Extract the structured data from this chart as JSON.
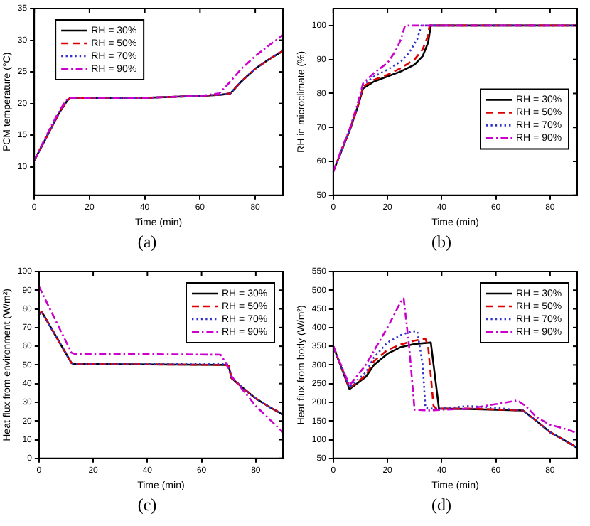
{
  "chart_data": [
    {
      "type": "line",
      "xlabel": "Time (min)",
      "ylabel": "PCM temperature (°C)",
      "annotations": [
        "(a)"
      ],
      "xlim": [
        0,
        90
      ],
      "xticks": [
        0,
        20,
        40,
        60,
        80
      ],
      "ylim": [
        5.5,
        35
      ],
      "yticks": [
        10,
        15,
        20,
        25,
        30,
        35
      ],
      "grid": false,
      "legend": "top left",
      "series": [
        {
          "name": "RH = 30%",
          "color": "#000000",
          "line_style": "solid",
          "x": [
            0,
            3,
            6,
            9,
            12,
            13,
            20,
            40,
            60,
            68,
            71,
            75,
            80,
            85,
            90
          ],
          "values": [
            11,
            13.5,
            16,
            18.5,
            20.5,
            20.9,
            20.9,
            20.9,
            21.2,
            21.4,
            21.6,
            23.5,
            25.5,
            27,
            28.3
          ]
        },
        {
          "name": "RH = 50%",
          "color": "#dd0000",
          "line_style": "dashed",
          "x": [
            0,
            3,
            6,
            9,
            12,
            13,
            20,
            40,
            60,
            68,
            71,
            75,
            80,
            85,
            90
          ],
          "values": [
            11,
            13.5,
            16,
            18.5,
            20.5,
            20.9,
            20.9,
            20.9,
            21.2,
            21.4,
            21.6,
            23.5,
            25.5,
            27,
            28.3
          ]
        },
        {
          "name": "RH = 70%",
          "color": "#3333cc",
          "line_style": "dotted",
          "x": [
            0,
            3,
            6,
            9,
            12,
            13,
            20,
            40,
            60,
            68,
            71,
            75,
            80,
            85,
            90
          ],
          "values": [
            11,
            13.5,
            16,
            18.5,
            20.6,
            20.9,
            20.9,
            20.9,
            21.2,
            21.4,
            21.6,
            23.5,
            25.5,
            27,
            28.4
          ]
        },
        {
          "name": "RH = 90%",
          "color": "#cc00cc",
          "line_style": "dashdot",
          "x": [
            0,
            3,
            6,
            9,
            12,
            13,
            20,
            40,
            60,
            67,
            70,
            75,
            80,
            85,
            90
          ],
          "values": [
            11,
            13.7,
            16.3,
            18.8,
            20.8,
            20.9,
            20.9,
            20.9,
            21.2,
            21.6,
            23,
            25.5,
            27.5,
            29.2,
            30.8
          ]
        }
      ]
    },
    {
      "type": "line",
      "xlabel": "Time (min)",
      "ylabel": "RH in microclimate (%)",
      "annotations": [
        "(b)"
      ],
      "xlim": [
        0,
        90
      ],
      "xticks": [
        0,
        20,
        40,
        60,
        80
      ],
      "ylim": [
        50,
        105
      ],
      "yticks": [
        50,
        60,
        70,
        80,
        90,
        100
      ],
      "grid": false,
      "legend": "right",
      "series": [
        {
          "name": "RH = 30%",
          "color": "#000000",
          "line_style": "solid",
          "x": [
            0,
            3,
            6,
            9,
            11,
            15,
            20,
            25,
            30,
            33,
            35,
            36,
            90
          ],
          "values": [
            57,
            63,
            69,
            76,
            81.5,
            83.5,
            85,
            86.5,
            88.5,
            91,
            95,
            100,
            100
          ]
        },
        {
          "name": "RH = 50%",
          "color": "#dd0000",
          "line_style": "dashed",
          "x": [
            0,
            3,
            6,
            9,
            11,
            15,
            20,
            25,
            30,
            33,
            35,
            35.5,
            90
          ],
          "values": [
            57,
            63,
            69,
            76,
            82,
            84,
            85.5,
            87.5,
            90,
            93,
            97,
            100,
            100
          ]
        },
        {
          "name": "RH = 70%",
          "color": "#3333cc",
          "line_style": "dotted",
          "x": [
            0,
            3,
            6,
            9,
            11,
            15,
            20,
            25,
            28,
            31,
            32.5,
            90
          ],
          "values": [
            57,
            63,
            69,
            76.5,
            82.5,
            85,
            87,
            89.5,
            92,
            96,
            100,
            100
          ]
        },
        {
          "name": "RH = 90%",
          "color": "#cc00cc",
          "line_style": "dashdot",
          "x": [
            0,
            3,
            6,
            9,
            11,
            15,
            20,
            23,
            25,
            26.5,
            90
          ],
          "values": [
            57,
            63.5,
            69.5,
            77,
            83,
            86,
            89,
            92.5,
            96,
            100,
            100
          ]
        }
      ]
    },
    {
      "type": "line",
      "xlabel": "Time (min)",
      "ylabel": "Heat flux from environment (W/m²)",
      "annotations": [
        "(c)"
      ],
      "xlim": [
        0,
        90
      ],
      "xticks": [
        0,
        20,
        40,
        60,
        80
      ],
      "ylim": [
        0,
        100
      ],
      "yticks": [
        0,
        10,
        20,
        30,
        40,
        50,
        60,
        70,
        80,
        90,
        100
      ],
      "grid": false,
      "legend": "top right",
      "series": [
        {
          "name": "RH = 30%",
          "color": "#000000",
          "line_style": "solid",
          "x": [
            0,
            1,
            12,
            13,
            69,
            70,
            71,
            75,
            80,
            85,
            90
          ],
          "values": [
            77,
            78.5,
            51,
            50.5,
            50,
            49.5,
            43,
            38,
            32,
            27.5,
            23.5
          ]
        },
        {
          "name": "RH = 50%",
          "color": "#dd0000",
          "line_style": "dashed",
          "x": [
            0,
            1,
            12,
            13,
            69,
            70,
            71,
            75,
            80,
            85,
            90
          ],
          "values": [
            77,
            78.5,
            51,
            50.5,
            50,
            49.5,
            43,
            38,
            32,
            27.5,
            23.5
          ]
        },
        {
          "name": "RH = 70%",
          "color": "#3333cc",
          "line_style": "dotted",
          "x": [
            0,
            1,
            12,
            13,
            69,
            70,
            71,
            75,
            80,
            85,
            90
          ],
          "values": [
            77,
            78.5,
            51,
            50.5,
            50.5,
            50,
            43.5,
            38,
            32,
            27.5,
            23.5
          ]
        },
        {
          "name": "RH = 90%",
          "color": "#cc00cc",
          "line_style": "dashdot",
          "x": [
            0,
            12,
            13,
            67,
            69,
            71,
            75,
            80,
            85,
            90
          ],
          "values": [
            92,
            56.5,
            56,
            55.5,
            51,
            44,
            37,
            28,
            21,
            14
          ]
        }
      ]
    },
    {
      "type": "line",
      "xlabel": "Time (min)",
      "ylabel": "Heat flux from body (W/m²)",
      "annotations": [
        "(d)"
      ],
      "xlim": [
        0,
        90
      ],
      "xticks": [
        0,
        20,
        40,
        60,
        80
      ],
      "ylim": [
        50,
        550
      ],
      "yticks": [
        50,
        100,
        150,
        200,
        250,
        300,
        350,
        400,
        450,
        500,
        550
      ],
      "grid": false,
      "legend": "top right",
      "series": [
        {
          "name": "RH = 30%",
          "color": "#000000",
          "line_style": "solid",
          "x": [
            0,
            6,
            12,
            15,
            20,
            25,
            30,
            36,
            39,
            50,
            60,
            70,
            75,
            80,
            85,
            90
          ],
          "values": [
            350,
            235,
            268,
            300,
            330,
            348,
            356,
            360,
            183,
            182,
            180,
            178,
            150,
            120,
            100,
            78
          ]
        },
        {
          "name": "RH = 50%",
          "color": "#dd0000",
          "line_style": "dashed",
          "x": [
            0,
            6,
            12,
            15,
            20,
            25,
            30,
            34,
            35,
            37,
            38,
            50,
            60,
            70,
            75,
            80,
            85,
            90
          ],
          "values": [
            350,
            238,
            272,
            310,
            340,
            355,
            365,
            370,
            350,
            190,
            183,
            183,
            181,
            178,
            150,
            120,
            100,
            78
          ]
        },
        {
          "name": "RH = 70%",
          "color": "#3333cc",
          "line_style": "dotted",
          "x": [
            0,
            6,
            12,
            15,
            20,
            25,
            29,
            31,
            33,
            34,
            38,
            50,
            60,
            70,
            75,
            80,
            85,
            90
          ],
          "values": [
            350,
            240,
            280,
            320,
            360,
            380,
            390,
            390,
            300,
            185,
            182,
            190,
            185,
            178,
            150,
            120,
            100,
            78
          ]
        },
        {
          "name": "RH = 90%",
          "color": "#cc00cc",
          "line_style": "dashdot",
          "x": [
            0,
            6,
            12,
            20,
            25,
            26,
            28,
            30,
            35,
            40,
            50,
            60,
            68,
            71,
            75,
            80,
            85,
            90
          ],
          "values": [
            350,
            245,
            300,
            400,
            470,
            478,
            350,
            180,
            178,
            180,
            183,
            195,
            205,
            190,
            160,
            140,
            130,
            118
          ]
        }
      ]
    }
  ]
}
